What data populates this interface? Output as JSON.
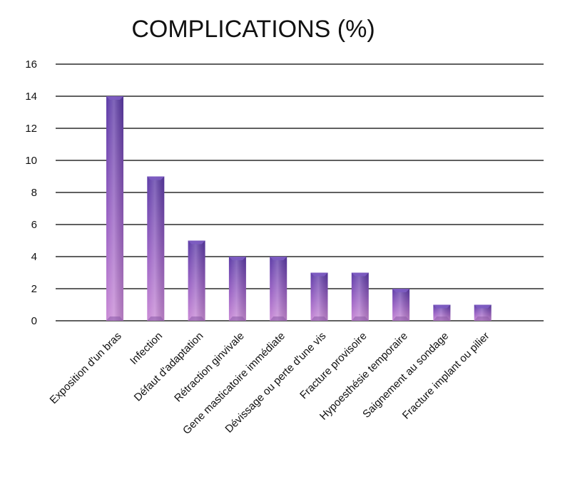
{
  "chart_data": {
    "type": "bar",
    "title": "COMPLICATIONS (%)",
    "xlabel": "",
    "ylabel": "",
    "ylim": [
      0,
      16
    ],
    "yticks": [
      "0",
      "2",
      "4",
      "6",
      "8",
      "10",
      "12",
      "14",
      "16"
    ],
    "grid": true,
    "categories": [
      "Exposition d'un bras",
      "Infection",
      "Défaut d'adaptation",
      "Rétraction ginvivale",
      "Gene masticatoire immédiate",
      "Dévissage ou perte d'une vis",
      "Fracture provisoire",
      "Hypoesthésie temporaire",
      "Saignement au sondage",
      "Fracture implant ou  pilier"
    ],
    "values": [
      14,
      9,
      5,
      4,
      4,
      3,
      3,
      2,
      1,
      1
    ],
    "colors": {
      "bar_top": "#5b3aa6",
      "bar_bottom": "#c98ad6",
      "grid": "#000000"
    }
  }
}
